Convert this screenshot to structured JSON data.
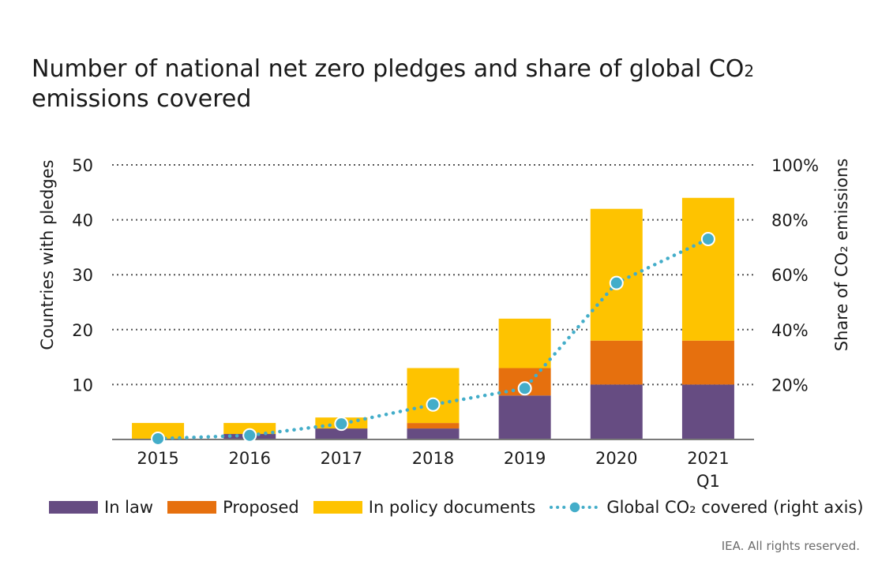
{
  "title_main": "Number of national net zero pledges and share of global CO",
  "title_sub": "2",
  "title_line2": "emissions covered",
  "credit": "IEA. All rights reserved.",
  "legend": {
    "in_law": "In law",
    "proposed": "Proposed",
    "in_policy": "In policy documents",
    "global_co2": "Global CO₂ covered (right axis)"
  },
  "colors": {
    "in_law": "#664c82",
    "proposed": "#e6700e",
    "in_policy": "#fec300",
    "line": "#43adc9",
    "grid": "#555555"
  },
  "chart_data": {
    "type": "bar",
    "stacked": true,
    "categories": [
      "2015",
      "2016",
      "2017",
      "2018",
      "2019",
      "2020",
      "2021"
    ],
    "category_sublabels": [
      "",
      "",
      "",
      "",
      "",
      "",
      "Q1"
    ],
    "ylabel": "Countries with pledges",
    "ylabel_right": "Share of CO₂ emissions",
    "ylim": [
      0,
      50
    ],
    "yticks": [
      10,
      20,
      30,
      40,
      50
    ],
    "ylim_right": [
      0,
      100
    ],
    "yticks_right": [
      "20%",
      "40%",
      "60%",
      "80%",
      "100%"
    ],
    "grid": "horizontal dotted",
    "legend_position": "bottom",
    "series": [
      {
        "name": "In law",
        "values": [
          0,
          1,
          2,
          2,
          8,
          10,
          10
        ]
      },
      {
        "name": "Proposed",
        "values": [
          0,
          0,
          0,
          1,
          5,
          8,
          8
        ]
      },
      {
        "name": "In policy documents",
        "values": [
          3,
          2,
          2,
          10,
          9,
          24,
          26
        ]
      }
    ],
    "line_series": {
      "name": "Global CO₂ covered (right axis)",
      "axis": "right",
      "values": [
        0.3,
        1.5,
        5.7,
        12.7,
        18.6,
        57,
        73
      ]
    }
  }
}
